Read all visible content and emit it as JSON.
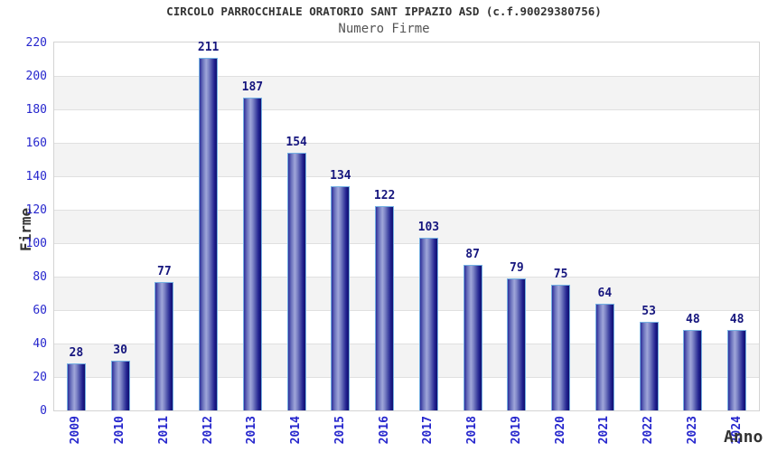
{
  "chart_data": {
    "type": "bar",
    "title": "CIRCOLO PARROCCHIALE ORATORIO SANT IPPAZIO ASD (c.f.90029380756)",
    "subtitle": "Numero Firme",
    "xlabel": "Anno",
    "ylabel": "Firme",
    "categories": [
      "2009",
      "2010",
      "2011",
      "2012",
      "2013",
      "2014",
      "2015",
      "2016",
      "2017",
      "2018",
      "2019",
      "2020",
      "2021",
      "2022",
      "2023",
      "2024"
    ],
    "values": [
      28,
      30,
      77,
      211,
      187,
      154,
      134,
      122,
      103,
      87,
      79,
      75,
      64,
      53,
      48,
      48
    ],
    "ylim": [
      0,
      220
    ],
    "ytick_step": 20,
    "grid": true,
    "legend": "none",
    "layout": {
      "bands_alternate": true,
      "x_labels_rotated_90": true
    },
    "colors": {
      "title": "#333333",
      "subtitle": "#555555",
      "axis_title": "#333333",
      "tick_label": "#2626cd",
      "value_label": "#16167e",
      "band": "#f3f3f3",
      "gridline": "#e0e0e0",
      "plot_border": "#d3d3d3",
      "bar_border": "#74b0e2",
      "bar_gradient": [
        "#2e2e9a",
        "#6a71bc",
        "#9fa6d9",
        "#7f86c7",
        "#4a4fa8",
        "#20208e",
        "#10106e"
      ]
    }
  }
}
